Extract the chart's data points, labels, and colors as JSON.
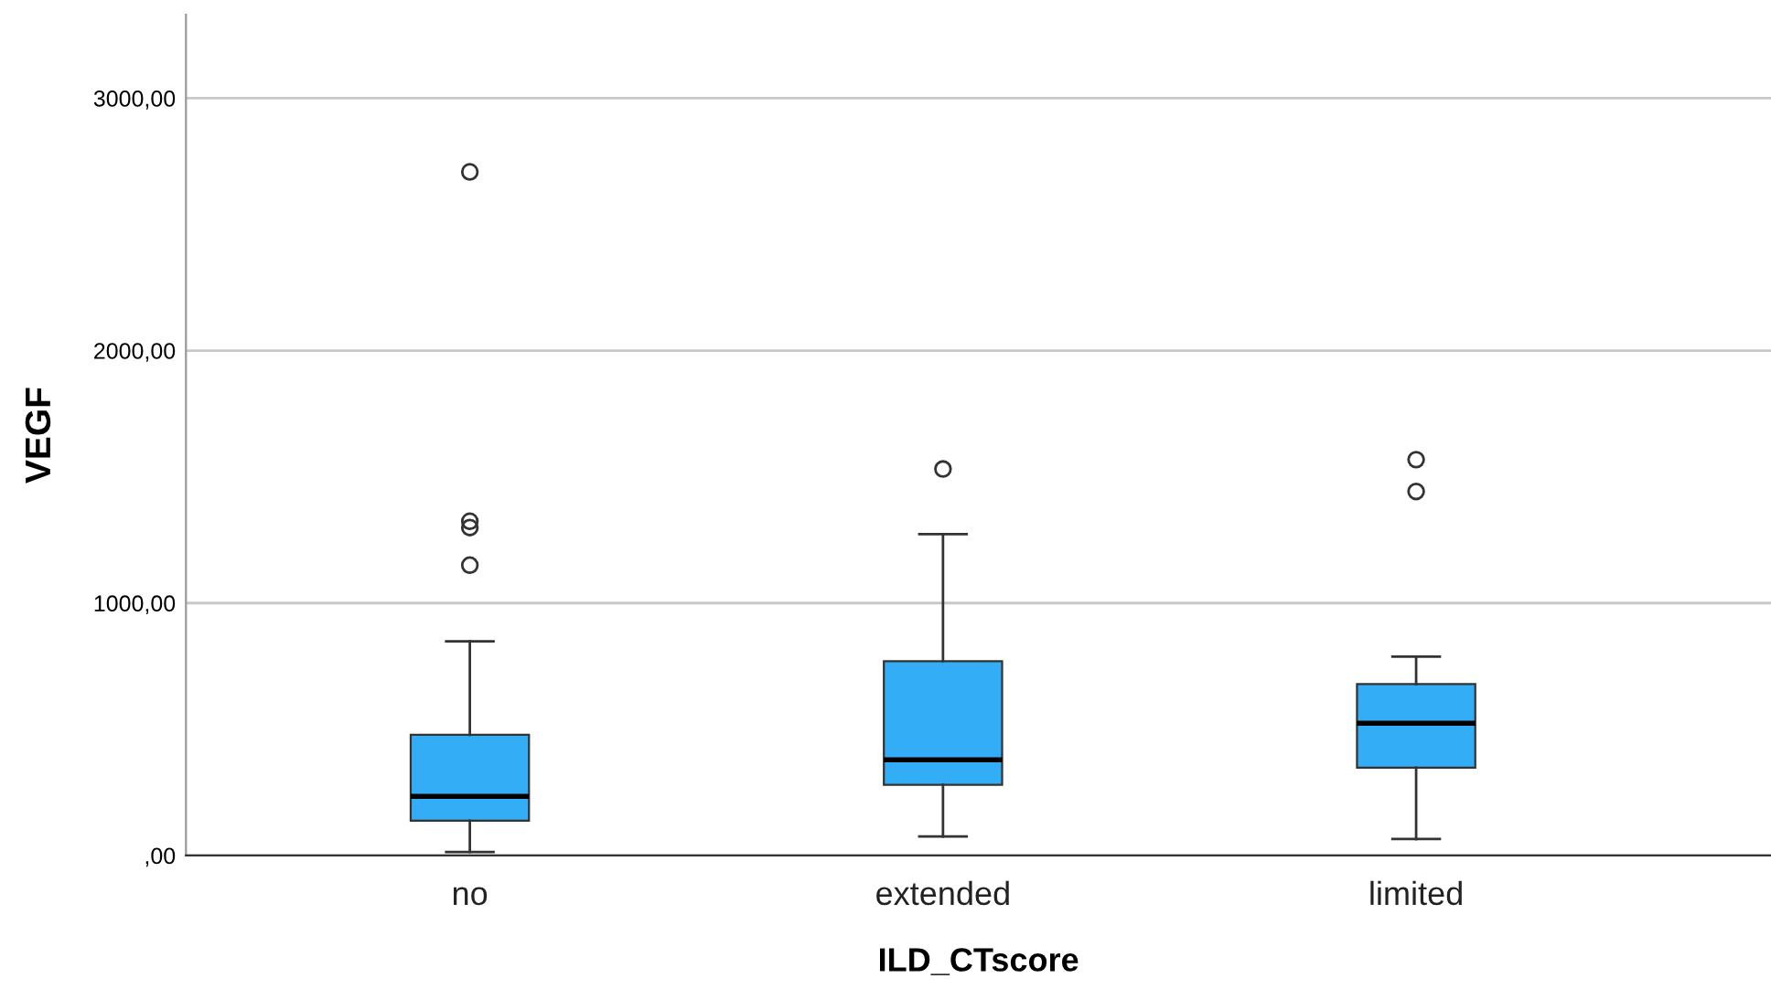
{
  "chart_data": {
    "type": "box",
    "xlabel": "ILD_CTscore",
    "ylabel": "VEGF",
    "categories": [
      "no",
      "extended",
      "limited"
    ],
    "color": "#33adf5",
    "grid": "y",
    "ylim": [
      0,
      3330
    ],
    "yticks": [
      {
        "value": 0,
        "label": ",00"
      },
      {
        "value": 1000,
        "label": "1000,00"
      },
      {
        "value": 2000,
        "label": "2000,00"
      },
      {
        "value": 3000,
        "label": "3000,00"
      }
    ],
    "boxes": [
      {
        "low": 14,
        "q1": 138,
        "median": 234,
        "q3": 478,
        "high": 848,
        "outliers": [
          1150,
          1299,
          1324,
          2708
        ]
      },
      {
        "low": 75,
        "q1": 280,
        "median": 379,
        "q3": 770,
        "high": 1273,
        "outliers": [
          1531
        ]
      },
      {
        "low": 65,
        "q1": 348,
        "median": 524,
        "q3": 679,
        "high": 788,
        "outliers": [
          1442,
          1568
        ]
      }
    ]
  }
}
